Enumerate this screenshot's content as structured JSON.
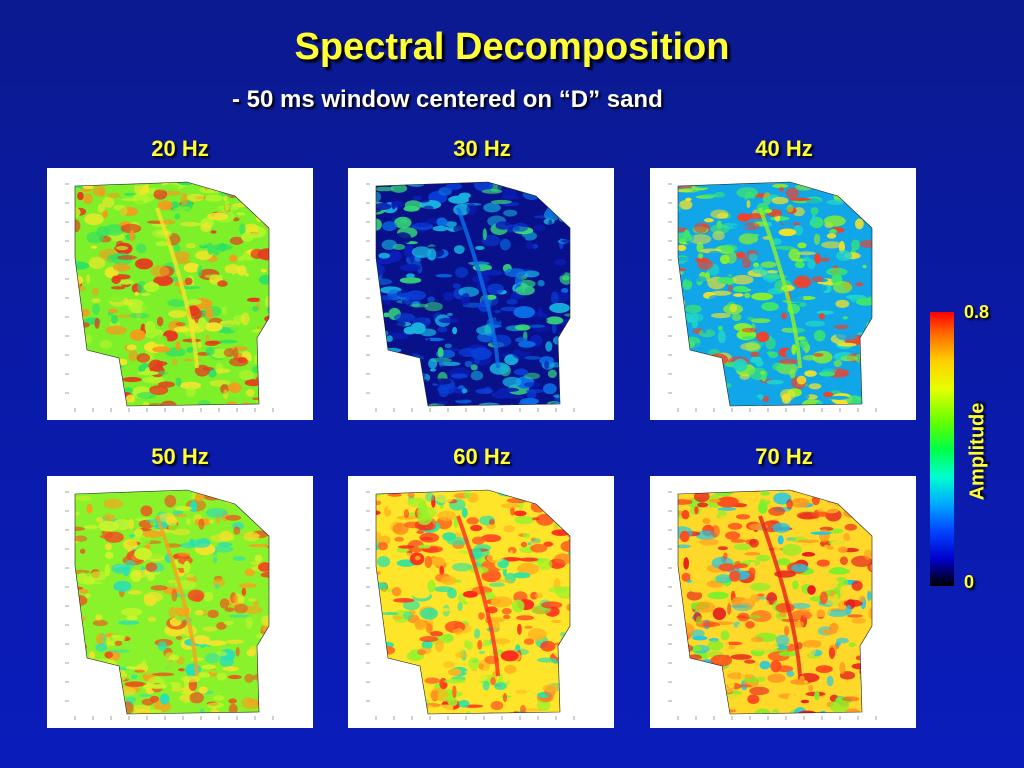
{
  "title": "Spectral Decomposition",
  "subtitle": "- 50 ms window centered on “D” sand",
  "panels": [
    {
      "label": "20 Hz",
      "palette": [
        "#7ef02a",
        "#b6f52a",
        "#2fe063",
        "#f5e62a",
        "#f59a1e",
        "#e63a1e"
      ]
    },
    {
      "label": "30 Hz",
      "palette": [
        "#08108a",
        "#0a1fb8",
        "#0a3fd8",
        "#0b6ee8",
        "#18b3e0",
        "#35d87a"
      ]
    },
    {
      "label": "40 Hz",
      "palette": [
        "#10a6e8",
        "#20d6c8",
        "#3fe86a",
        "#8ef22a",
        "#f2e22a",
        "#f2402a"
      ]
    },
    {
      "label": "50 Hz",
      "palette": [
        "#8af22a",
        "#c8f52a",
        "#f5e22a",
        "#f5a31e",
        "#f0501e",
        "#28e0b8"
      ]
    },
    {
      "label": "60 Hz",
      "palette": [
        "#ffe52a",
        "#ffb41e",
        "#ff6a1e",
        "#ff2a1e",
        "#9af22a",
        "#2ee3a0"
      ]
    },
    {
      "label": "70 Hz",
      "palette": [
        "#ffd92a",
        "#ff9a1e",
        "#ff4a1e",
        "#e61e1e",
        "#7eef2a",
        "#1ec8e8"
      ]
    }
  ],
  "colorbar": {
    "max": "0.8",
    "min": "0",
    "label": "Amplitude"
  }
}
